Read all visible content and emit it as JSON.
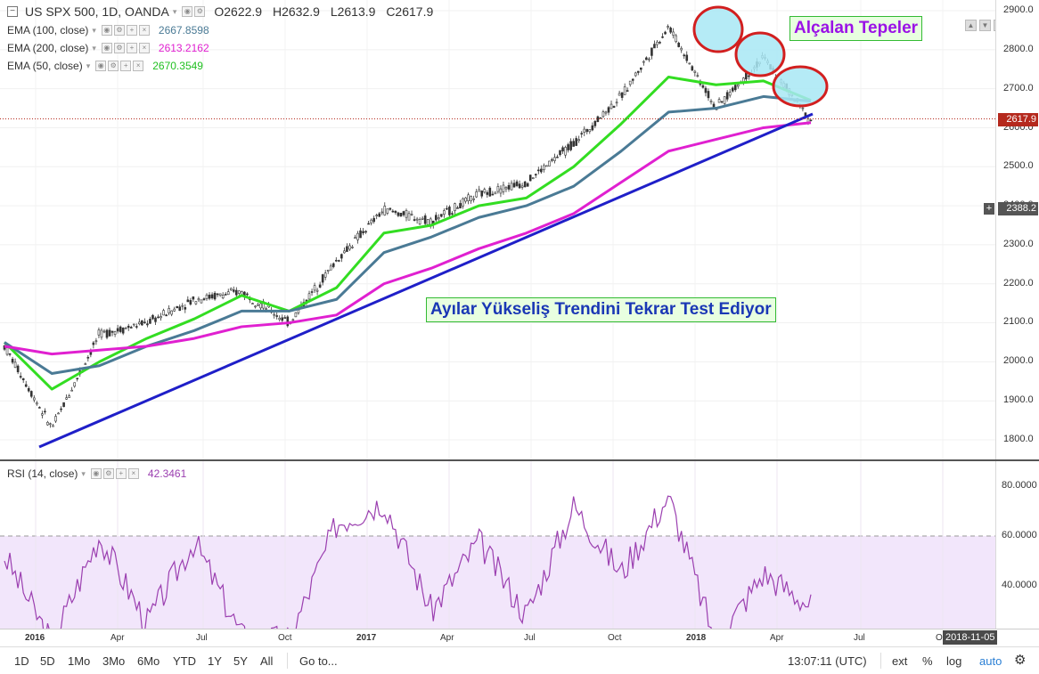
{
  "header": {
    "symbol": "US SPX 500, 1D, OANDA",
    "open": "O2622.9",
    "high": "H2632.9",
    "low": "L2613.9",
    "close": "C2617.9"
  },
  "indicators": [
    {
      "label": "EMA (100, close)",
      "value": "2667.8598",
      "color": "#4a7a95"
    },
    {
      "label": "EMA (200, close)",
      "value": "2613.2162",
      "color": "#e020d0"
    },
    {
      "label": "EMA (50, close)",
      "value": "2670.3549",
      "color": "#33dd22"
    }
  ],
  "rsi": {
    "label": "RSI (14, close)",
    "value": "42.3461",
    "color": "#9b3fb0"
  },
  "annotations": {
    "lower_highs": "Alçalan Tepeler",
    "bears_retest": "Ayılar Yükseliş Trendini Tekrar Test Ediyor"
  },
  "price_axis": {
    "ticks": [
      "2900.0",
      "2800.0",
      "2700.0",
      "2600.0",
      "2500.0",
      "2400.0",
      "2300.0",
      "2200.0",
      "2100.0",
      "2000.0",
      "1900.0",
      "1800.0"
    ],
    "last_price": "2617.9",
    "crosshair_price": "2388.2"
  },
  "rsi_axis": {
    "ticks": [
      "80.0000",
      "60.0000",
      "40.0000"
    ]
  },
  "time_axis": {
    "labels": [
      "2016",
      "Apr",
      "Jul",
      "Oct",
      "2017",
      "Apr",
      "Jul",
      "Oct",
      "2018",
      "Apr",
      "Jul",
      "Oct"
    ],
    "cursor_date": "2018-11-05"
  },
  "toolbar": {
    "ranges": [
      "1D",
      "5D",
      "1Mo",
      "3Mo",
      "6Mo",
      "YTD",
      "1Y",
      "5Y",
      "All"
    ],
    "goto": "Go to...",
    "clock": "13:07:11 (UTC)",
    "ext": "ext",
    "percent": "%",
    "log": "log",
    "auto": "auto"
  },
  "colors": {
    "ema50": "#33dd22",
    "ema100": "#4a7a95",
    "ema200": "#e020d0",
    "trendline": "#1f1fc8",
    "rsi_band": "#f2e6fb",
    "rsi_line": "#9b3fb0",
    "last_price_tag": "#b5291d",
    "highlight_fill": "#a8e8f5",
    "highlight_ring": "#d21f1f"
  },
  "chart_data": {
    "type": "line",
    "title": "US SPX 500, 1D, OANDA",
    "xlabel": "",
    "ylabel": "",
    "x": [
      "2016-01",
      "2016-02",
      "2016-04",
      "2016-06",
      "2016-07",
      "2016-09",
      "2016-11",
      "2016-12",
      "2017-03",
      "2017-04",
      "2017-06",
      "2017-08",
      "2017-10",
      "2017-12",
      "2018-01",
      "2018-02",
      "2018-03",
      "2018-04"
    ],
    "ylim": [
      1750,
      2920
    ],
    "series": [
      {
        "name": "US SPX 500",
        "values": [
          2040,
          1830,
          2070,
          2100,
          2160,
          2180,
          2100,
          2260,
          2390,
          2360,
          2430,
          2460,
          2560,
          2680,
          2860,
          2650,
          2780,
          2618
        ]
      },
      {
        "name": "EMA (50, close)",
        "values": [
          2050,
          1930,
          2000,
          2060,
          2110,
          2170,
          2130,
          2190,
          2330,
          2350,
          2400,
          2420,
          2500,
          2610,
          2730,
          2710,
          2720,
          2670
        ]
      },
      {
        "name": "EMA (100, close)",
        "values": [
          2050,
          1970,
          1990,
          2040,
          2080,
          2130,
          2130,
          2160,
          2280,
          2320,
          2370,
          2400,
          2450,
          2540,
          2640,
          2650,
          2680,
          2668
        ]
      },
      {
        "name": "EMA (200, close)",
        "values": [
          2040,
          2020,
          2030,
          2040,
          2060,
          2090,
          2100,
          2120,
          2200,
          2240,
          2290,
          2330,
          2380,
          2460,
          2540,
          2570,
          2600,
          2613
        ]
      }
    ],
    "rsi": {
      "name": "RSI (14, close)",
      "ylim": [
        22,
        88
      ],
      "x": [
        "2016-01",
        "2016-02",
        "2016-04",
        "2016-06",
        "2016-07",
        "2016-09",
        "2016-11",
        "2016-12",
        "2017-03",
        "2017-04",
        "2017-06",
        "2017-08",
        "2017-10",
        "2017-12",
        "2018-01",
        "2018-02",
        "2018-03",
        "2018-04"
      ],
      "values": [
        62,
        27,
        70,
        35,
        68,
        30,
        28,
        75,
        84,
        40,
        68,
        38,
        82,
        55,
        86,
        27,
        55,
        42
      ],
      "bands": [
        70,
        30
      ]
    }
  }
}
